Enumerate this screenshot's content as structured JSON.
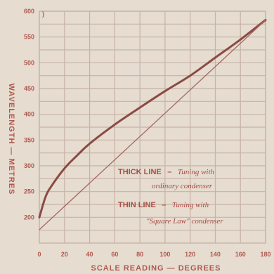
{
  "chart_data": {
    "type": "line",
    "xlabel": "SCALE READING — DEGREES",
    "ylabel": "WAVELENGTH — METRES",
    "xlim": [
      0,
      180
    ],
    "ylim": [
      150,
      600
    ],
    "xticks": [
      "0",
      "20",
      "40",
      "60",
      "80",
      "100",
      "120",
      "140",
      "160",
      "180"
    ],
    "yticks": [
      "200",
      "250",
      "300",
      "350",
      "400",
      "450",
      "500",
      "550",
      "600"
    ],
    "y_unit_mark": ")",
    "grid": true,
    "series": [
      {
        "name": "THICK LINE",
        "style": "thick",
        "x": [
          0,
          5,
          10,
          20,
          30,
          40,
          60,
          80,
          100,
          120,
          140,
          160,
          180
        ],
        "y": [
          200,
          240,
          262,
          295,
          320,
          343,
          380,
          413,
          445,
          475,
          510,
          545,
          583
        ]
      },
      {
        "name": "THIN LINE",
        "style": "thin",
        "x": [
          0,
          180
        ],
        "y": [
          176,
          583
        ]
      }
    ],
    "annotations": [
      {
        "bold": "THICK LINE",
        "dash": "–",
        "italic": "Tuning with"
      },
      {
        "italic": "ordinary condenser"
      },
      {
        "bold": "THIN LINE",
        "dash": "–",
        "italic": "Tuning with"
      },
      {
        "italic": "\"Square Law\" condenser"
      }
    ],
    "colors": {
      "background": "#e6dcd0",
      "grid": "#c7b3a6",
      "thick": "#8a4a45",
      "thin": "#a46963",
      "text": "#b0584e"
    }
  }
}
